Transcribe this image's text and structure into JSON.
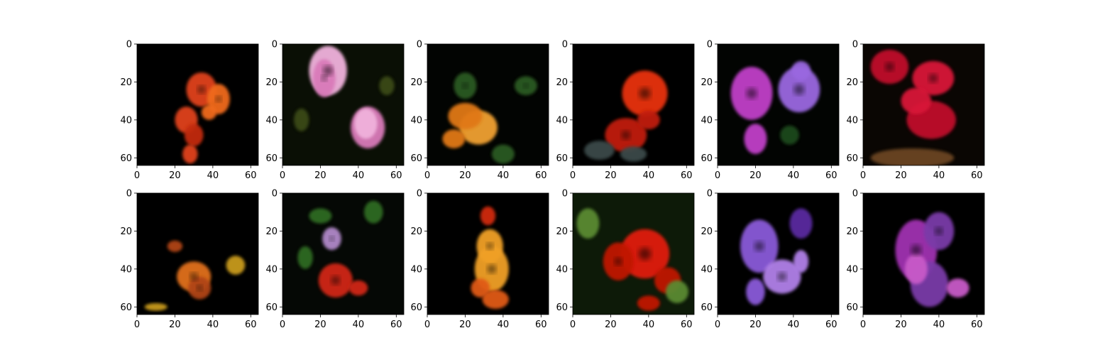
{
  "figure": {
    "grid": {
      "rows": 2,
      "cols": 6
    },
    "axes": {
      "x_ticks": [
        "0",
        "20",
        "40",
        "60"
      ],
      "y_ticks": [
        "0",
        "20",
        "40",
        "60"
      ],
      "image_extent": [
        0,
        64
      ]
    },
    "panels": [
      {
        "subject": "orange-red flower cluster",
        "background": "#000000",
        "colors": [
          "#e0421a",
          "#f06a1c",
          "#c22a10"
        ]
      },
      {
        "subject": "pink magnolia buds",
        "background": "#0a0f05",
        "colors": [
          "#d97ab9",
          "#f0b2dc",
          "#3a4a18"
        ]
      },
      {
        "subject": "orange double flower",
        "background": "#020402",
        "colors": [
          "#f0a030",
          "#e07818",
          "#2c5a22"
        ]
      },
      {
        "subject": "red flower with dark foliage",
        "background": "#000000",
        "colors": [
          "#e8300e",
          "#c01f08",
          "#3a4a48"
        ]
      },
      {
        "subject": "magenta and violet petunias",
        "background": "#020402",
        "colors": [
          "#c040c8",
          "#9a68e0",
          "#1e4a1a"
        ]
      },
      {
        "subject": "crimson petunias on mulch",
        "background": "#0a0603",
        "colors": [
          "#c0102a",
          "#d81838",
          "#6a4420"
        ]
      },
      {
        "subject": "orange flower in darkness",
        "background": "#000000",
        "colors": [
          "#e0701a",
          "#b04412",
          "#c89a1a"
        ]
      },
      {
        "subject": "mixed garden blossoms",
        "background": "#050805",
        "colors": [
          "#b088c8",
          "#d02818",
          "#2e6a22"
        ]
      },
      {
        "subject": "yellow-orange lily",
        "background": "#000000",
        "colors": [
          "#f0a028",
          "#e05a18",
          "#d02a10"
        ]
      },
      {
        "subject": "red flower with green leaves",
        "background": "#0d1a08",
        "colors": [
          "#e01c0a",
          "#c01206",
          "#5a8a30"
        ]
      },
      {
        "subject": "violet petunia blooms",
        "background": "#000000",
        "colors": [
          "#8a5ad8",
          "#b080e8",
          "#5a2aa0"
        ]
      },
      {
        "subject": "purple-magenta flower",
        "background": "#000000",
        "colors": [
          "#a030b0",
          "#7a3aa8",
          "#c85ac8"
        ]
      }
    ]
  }
}
